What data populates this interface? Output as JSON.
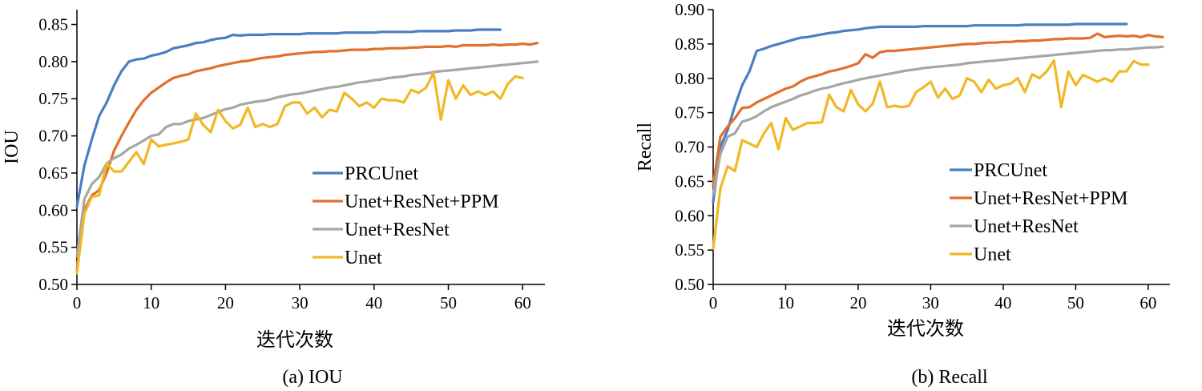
{
  "chart_data": [
    {
      "type": "line",
      "caption": "(a) IOU",
      "xlabel": "迭代次数",
      "ylabel": "IOU",
      "xlim": [
        0,
        63
      ],
      "ylim": [
        0.5,
        0.87
      ],
      "xticks": [
        0,
        10,
        20,
        30,
        40,
        50,
        60
      ],
      "yticks": [
        0.5,
        0.55,
        0.6,
        0.65,
        0.7,
        0.75,
        0.8,
        0.85
      ],
      "legend_position": "center-right",
      "grid": false,
      "series": [
        {
          "name": "PRCUnet",
          "color": "#4a7fc1",
          "x": [
            0,
            1,
            2,
            3,
            4,
            5,
            6,
            7,
            8,
            9,
            10,
            11,
            12,
            13,
            14,
            15,
            16,
            17,
            18,
            19,
            20,
            21,
            22,
            23,
            24,
            25,
            26,
            27,
            28,
            29,
            30,
            31,
            32,
            33,
            34,
            35,
            36,
            37,
            38,
            39,
            40,
            41,
            42,
            43,
            44,
            45,
            46,
            47,
            48,
            49,
            50,
            51,
            52,
            53,
            54,
            55,
            56,
            57
          ],
          "values": [
            0.605,
            0.66,
            0.695,
            0.727,
            0.745,
            0.768,
            0.787,
            0.8,
            0.803,
            0.804,
            0.808,
            0.81,
            0.813,
            0.818,
            0.82,
            0.822,
            0.825,
            0.826,
            0.829,
            0.831,
            0.832,
            0.836,
            0.835,
            0.836,
            0.836,
            0.836,
            0.837,
            0.837,
            0.837,
            0.837,
            0.837,
            0.838,
            0.838,
            0.838,
            0.838,
            0.838,
            0.839,
            0.839,
            0.839,
            0.839,
            0.839,
            0.84,
            0.84,
            0.84,
            0.84,
            0.84,
            0.841,
            0.841,
            0.841,
            0.841,
            0.841,
            0.842,
            0.842,
            0.842,
            0.843,
            0.843,
            0.843,
            0.843
          ]
        },
        {
          "name": "Unet+ResNet+PPM",
          "color": "#e0702a",
          "x": [
            0,
            1,
            2,
            3,
            4,
            5,
            6,
            7,
            8,
            9,
            10,
            11,
            12,
            13,
            14,
            15,
            16,
            17,
            18,
            19,
            20,
            21,
            22,
            23,
            24,
            25,
            26,
            27,
            28,
            29,
            30,
            31,
            32,
            33,
            34,
            35,
            36,
            37,
            38,
            39,
            40,
            41,
            42,
            43,
            44,
            45,
            46,
            47,
            48,
            49,
            50,
            51,
            52,
            53,
            54,
            55,
            56,
            57,
            58,
            59,
            60,
            61,
            62
          ],
          "values": [
            0.52,
            0.6,
            0.62,
            0.627,
            0.65,
            0.68,
            0.7,
            0.718,
            0.735,
            0.748,
            0.758,
            0.765,
            0.772,
            0.778,
            0.781,
            0.783,
            0.787,
            0.789,
            0.791,
            0.794,
            0.796,
            0.798,
            0.8,
            0.801,
            0.803,
            0.805,
            0.806,
            0.807,
            0.809,
            0.81,
            0.811,
            0.812,
            0.813,
            0.813,
            0.814,
            0.814,
            0.815,
            0.816,
            0.816,
            0.816,
            0.817,
            0.817,
            0.818,
            0.818,
            0.818,
            0.819,
            0.819,
            0.82,
            0.82,
            0.82,
            0.821,
            0.82,
            0.822,
            0.822,
            0.822,
            0.822,
            0.823,
            0.822,
            0.823,
            0.823,
            0.824,
            0.823,
            0.825
          ]
        },
        {
          "name": "Unet+ResNet",
          "color": "#a6a6a6",
          "x": [
            0,
            1,
            2,
            3,
            4,
            5,
            6,
            7,
            8,
            9,
            10,
            11,
            12,
            13,
            14,
            15,
            16,
            17,
            18,
            19,
            20,
            21,
            22,
            23,
            24,
            25,
            26,
            27,
            28,
            29,
            30,
            31,
            32,
            33,
            34,
            35,
            36,
            37,
            38,
            39,
            40,
            41,
            42,
            43,
            44,
            45,
            46,
            47,
            48,
            49,
            50,
            51,
            52,
            53,
            54,
            55,
            56,
            57,
            58,
            59,
            60,
            61,
            62
          ],
          "values": [
            0.538,
            0.615,
            0.635,
            0.645,
            0.663,
            0.67,
            0.675,
            0.683,
            0.688,
            0.694,
            0.7,
            0.702,
            0.712,
            0.716,
            0.716,
            0.72,
            0.722,
            0.724,
            0.728,
            0.732,
            0.736,
            0.738,
            0.742,
            0.744,
            0.746,
            0.747,
            0.749,
            0.752,
            0.754,
            0.756,
            0.757,
            0.759,
            0.761,
            0.763,
            0.765,
            0.766,
            0.768,
            0.77,
            0.772,
            0.773,
            0.775,
            0.776,
            0.778,
            0.779,
            0.78,
            0.782,
            0.783,
            0.784,
            0.786,
            0.787,
            0.788,
            0.789,
            0.79,
            0.791,
            0.792,
            0.793,
            0.794,
            0.795,
            0.796,
            0.797,
            0.798,
            0.799,
            0.8
          ]
        },
        {
          "name": "Unet",
          "color": "#f0b824",
          "x": [
            0,
            1,
            2,
            3,
            4,
            5,
            6,
            7,
            8,
            9,
            10,
            11,
            12,
            13,
            14,
            15,
            16,
            17,
            18,
            19,
            20,
            21,
            22,
            23,
            24,
            25,
            26,
            27,
            28,
            29,
            30,
            31,
            32,
            33,
            34,
            35,
            36,
            37,
            38,
            39,
            40,
            41,
            42,
            43,
            44,
            45,
            46,
            47,
            48,
            49,
            50,
            51,
            52,
            53,
            54,
            55,
            56,
            57,
            58,
            59,
            60
          ],
          "values": [
            0.515,
            0.595,
            0.618,
            0.62,
            0.663,
            0.652,
            0.652,
            0.665,
            0.678,
            0.662,
            0.695,
            0.686,
            0.688,
            0.69,
            0.692,
            0.695,
            0.73,
            0.715,
            0.705,
            0.735,
            0.72,
            0.71,
            0.715,
            0.738,
            0.712,
            0.716,
            0.712,
            0.716,
            0.74,
            0.745,
            0.745,
            0.73,
            0.738,
            0.725,
            0.735,
            0.733,
            0.758,
            0.75,
            0.74,
            0.745,
            0.738,
            0.75,
            0.748,
            0.748,
            0.745,
            0.762,
            0.758,
            0.765,
            0.785,
            0.722,
            0.775,
            0.75,
            0.768,
            0.755,
            0.76,
            0.755,
            0.76,
            0.75,
            0.77,
            0.78,
            0.778
          ]
        }
      ]
    },
    {
      "type": "line",
      "caption": "(b)  Recall",
      "xlabel": "迭代次数",
      "ylabel": "Recall",
      "xlim": [
        0,
        63
      ],
      "ylim": [
        0.5,
        0.9
      ],
      "xticks": [
        0,
        10,
        20,
        30,
        40,
        50,
        60
      ],
      "yticks": [
        0.5,
        0.55,
        0.6,
        0.65,
        0.7,
        0.75,
        0.8,
        0.85,
        0.9
      ],
      "legend_position": "center-right",
      "grid": false,
      "series": [
        {
          "name": "PRCUnet",
          "color": "#4a7fc1",
          "x": [
            0,
            1,
            2,
            3,
            4,
            5,
            6,
            7,
            8,
            9,
            10,
            11,
            12,
            13,
            14,
            15,
            16,
            17,
            18,
            19,
            20,
            21,
            22,
            23,
            24,
            25,
            26,
            27,
            28,
            29,
            30,
            31,
            32,
            33,
            34,
            35,
            36,
            37,
            38,
            39,
            40,
            41,
            42,
            43,
            44,
            45,
            46,
            47,
            48,
            49,
            50,
            51,
            52,
            53,
            54,
            55,
            56,
            57
          ],
          "values": [
            0.62,
            0.7,
            0.725,
            0.76,
            0.79,
            0.81,
            0.84,
            0.843,
            0.847,
            0.85,
            0.853,
            0.856,
            0.859,
            0.86,
            0.862,
            0.864,
            0.866,
            0.867,
            0.869,
            0.87,
            0.871,
            0.873,
            0.874,
            0.875,
            0.875,
            0.875,
            0.875,
            0.875,
            0.875,
            0.876,
            0.876,
            0.876,
            0.876,
            0.876,
            0.876,
            0.876,
            0.877,
            0.877,
            0.877,
            0.877,
            0.877,
            0.877,
            0.877,
            0.878,
            0.878,
            0.878,
            0.878,
            0.878,
            0.878,
            0.878,
            0.879,
            0.879,
            0.879,
            0.879,
            0.879,
            0.879,
            0.879,
            0.879
          ]
        },
        {
          "name": "Unet+ResNet+PPM",
          "color": "#e0702a",
          "x": [
            0,
            1,
            2,
            3,
            4,
            5,
            6,
            7,
            8,
            9,
            10,
            11,
            12,
            13,
            14,
            15,
            16,
            17,
            18,
            19,
            20,
            21,
            22,
            23,
            24,
            25,
            26,
            27,
            28,
            29,
            30,
            31,
            32,
            33,
            34,
            35,
            36,
            37,
            38,
            39,
            40,
            41,
            42,
            43,
            44,
            45,
            46,
            47,
            48,
            49,
            50,
            51,
            52,
            53,
            54,
            55,
            56,
            57,
            58,
            59,
            60,
            61,
            62
          ],
          "values": [
            0.645,
            0.715,
            0.73,
            0.742,
            0.757,
            0.758,
            0.765,
            0.77,
            0.775,
            0.78,
            0.785,
            0.788,
            0.795,
            0.8,
            0.803,
            0.806,
            0.81,
            0.812,
            0.815,
            0.818,
            0.822,
            0.835,
            0.83,
            0.838,
            0.84,
            0.84,
            0.841,
            0.842,
            0.843,
            0.844,
            0.845,
            0.846,
            0.847,
            0.848,
            0.849,
            0.85,
            0.85,
            0.851,
            0.852,
            0.852,
            0.853,
            0.853,
            0.854,
            0.854,
            0.855,
            0.855,
            0.856,
            0.857,
            0.857,
            0.858,
            0.858,
            0.858,
            0.859,
            0.865,
            0.86,
            0.861,
            0.862,
            0.861,
            0.862,
            0.86,
            0.863,
            0.861,
            0.86
          ]
        },
        {
          "name": "Unet+ResNet",
          "color": "#a6a6a6",
          "x": [
            0,
            1,
            2,
            3,
            4,
            5,
            6,
            7,
            8,
            9,
            10,
            11,
            12,
            13,
            14,
            15,
            16,
            17,
            18,
            19,
            20,
            21,
            22,
            23,
            24,
            25,
            26,
            27,
            28,
            29,
            30,
            31,
            32,
            33,
            34,
            35,
            36,
            37,
            38,
            39,
            40,
            41,
            42,
            43,
            44,
            45,
            46,
            47,
            48,
            49,
            50,
            51,
            52,
            53,
            54,
            55,
            56,
            57,
            58,
            59,
            60,
            61,
            62
          ],
          "values": [
            0.63,
            0.69,
            0.715,
            0.72,
            0.737,
            0.74,
            0.745,
            0.752,
            0.758,
            0.762,
            0.766,
            0.77,
            0.775,
            0.778,
            0.782,
            0.785,
            0.787,
            0.79,
            0.793,
            0.795,
            0.798,
            0.8,
            0.802,
            0.804,
            0.806,
            0.808,
            0.81,
            0.812,
            0.813,
            0.815,
            0.816,
            0.817,
            0.818,
            0.819,
            0.82,
            0.822,
            0.823,
            0.824,
            0.825,
            0.826,
            0.827,
            0.828,
            0.829,
            0.83,
            0.831,
            0.832,
            0.833,
            0.834,
            0.835,
            0.836,
            0.837,
            0.838,
            0.839,
            0.84,
            0.841,
            0.841,
            0.842,
            0.842,
            0.843,
            0.844,
            0.845,
            0.845,
            0.846
          ]
        },
        {
          "name": "Unet",
          "color": "#f0b824",
          "x": [
            0,
            1,
            2,
            3,
            4,
            5,
            6,
            7,
            8,
            9,
            10,
            11,
            12,
            13,
            14,
            15,
            16,
            17,
            18,
            19,
            20,
            21,
            22,
            23,
            24,
            25,
            26,
            27,
            28,
            29,
            30,
            31,
            32,
            33,
            34,
            35,
            36,
            37,
            38,
            39,
            40,
            41,
            42,
            43,
            44,
            45,
            46,
            47,
            48,
            49,
            50,
            51,
            52,
            53,
            54,
            55,
            56,
            57,
            58,
            59,
            60
          ],
          "values": [
            0.552,
            0.64,
            0.672,
            0.665,
            0.71,
            0.705,
            0.7,
            0.72,
            0.735,
            0.697,
            0.742,
            0.725,
            0.73,
            0.735,
            0.735,
            0.736,
            0.776,
            0.758,
            0.752,
            0.783,
            0.762,
            0.752,
            0.763,
            0.795,
            0.758,
            0.76,
            0.758,
            0.76,
            0.78,
            0.787,
            0.795,
            0.772,
            0.785,
            0.77,
            0.775,
            0.8,
            0.795,
            0.78,
            0.798,
            0.785,
            0.79,
            0.792,
            0.8,
            0.78,
            0.806,
            0.8,
            0.81,
            0.826,
            0.758,
            0.81,
            0.79,
            0.805,
            0.8,
            0.795,
            0.8,
            0.795,
            0.81,
            0.81,
            0.825,
            0.82,
            0.82
          ]
        }
      ]
    }
  ]
}
